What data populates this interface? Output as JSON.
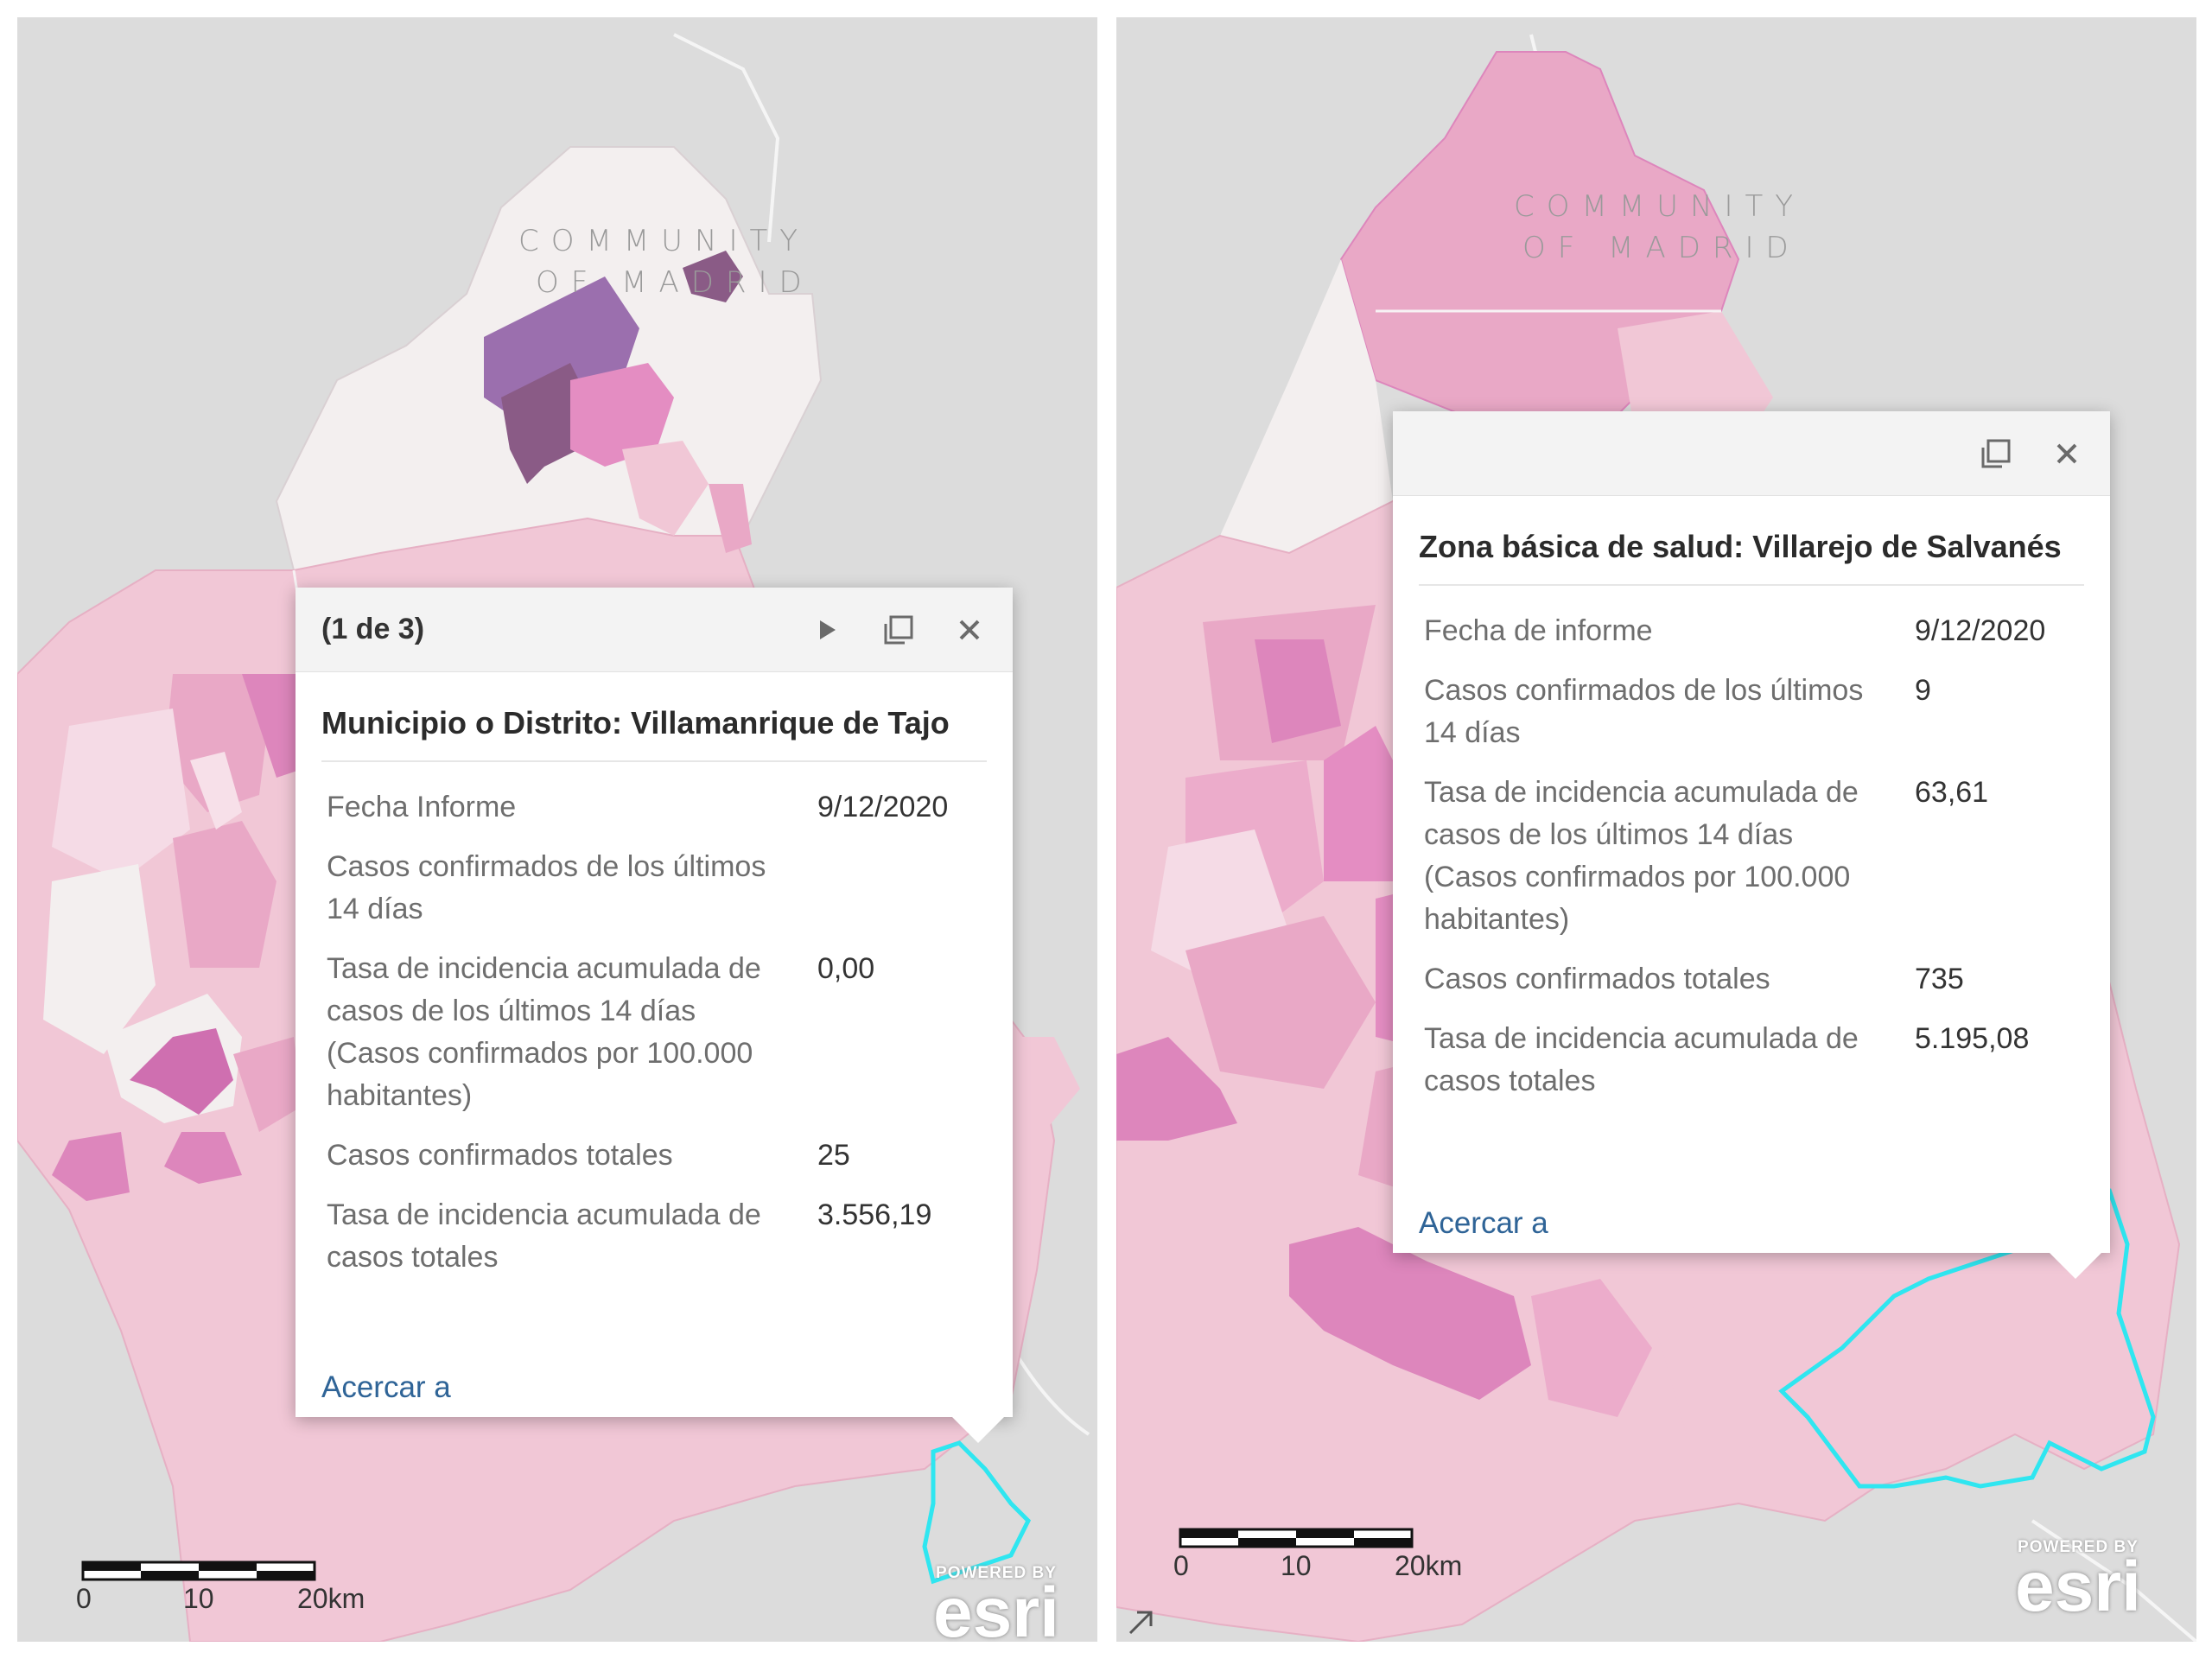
{
  "map_labels": {
    "region_line1": "COMMUNITY",
    "region_line2": "OF MADRID"
  },
  "colors": {
    "basemap": "#dcdcdc",
    "region_fill": "#f3efef",
    "light_pink": "#f1c7d6",
    "mid_pink": "#e9a8c6",
    "strong_pink": "#dd86bc",
    "purple": "#9b6fae",
    "dark_purple": "#8a5b86",
    "highlight_outline": "#2fe6f0",
    "link": "#2f6497"
  },
  "left_popup": {
    "counter": "(1 de 3)",
    "title": "Municipio o Distrito: Villamanrique de Tajo",
    "rows": [
      {
        "label": "Fecha Informe",
        "value": "9/12/2020"
      },
      {
        "label": "Casos confirmados de los últimos 14 días",
        "value": ""
      },
      {
        "label": "Tasa de incidencia acumulada de casos de los últimos 14 días (Casos confirmados por 100.000 habitantes)",
        "value": "0,00"
      },
      {
        "label": "Casos confirmados totales",
        "value": "25"
      },
      {
        "label": "Tasa de incidencia acumulada de casos totales",
        "value": "3.556,19"
      }
    ],
    "zoom_label": "Acercar a",
    "tools": [
      "next-arrow-icon",
      "maximize-icon",
      "close-icon"
    ]
  },
  "right_popup": {
    "title": "Zona básica de salud: Villarejo de Salvanés",
    "rows": [
      {
        "label": "Fecha de informe",
        "value": "9/12/2020"
      },
      {
        "label": "Casos confirmados de los últimos 14 días",
        "value": "9"
      },
      {
        "label": "Tasa de incidencia acumulada de casos de los últimos 14 días (Casos confirmados por 100.000 habitantes)",
        "value": "63,61"
      },
      {
        "label": "Casos confirmados totales",
        "value": "735"
      },
      {
        "label": "Tasa de incidencia acumulada de casos totales",
        "value": "5.195,08"
      }
    ],
    "zoom_label": "Acercar a",
    "tools": [
      "maximize-icon",
      "close-icon"
    ]
  },
  "scalebar": {
    "labels": [
      "0",
      "10",
      "20km"
    ]
  },
  "attribution": {
    "powered_by": "POWERED BY",
    "brand": "esri"
  }
}
